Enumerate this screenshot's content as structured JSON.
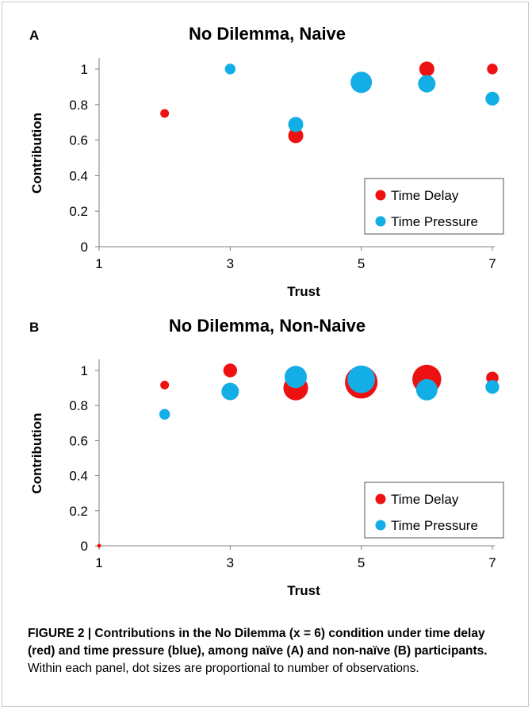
{
  "chart_data": [
    {
      "type": "scatter",
      "panel_label": "A",
      "title": "No Dilemma, Naive",
      "xlabel": "Trust",
      "ylabel": "Contribution",
      "xlim": [
        1,
        7
      ],
      "ylim": [
        0,
        1
      ],
      "xticks": [
        "1",
        "3",
        "5",
        "7"
      ],
      "yticks": [
        "0",
        "0.2",
        "0.4",
        "0.6",
        "0.8",
        "1"
      ],
      "legend_position": "bottom-right",
      "series": [
        {
          "name": "Time Delay",
          "color": "#ee1111",
          "points": [
            {
              "x": 2,
              "y": 0.75,
              "size": 1
            },
            {
              "x": 4,
              "y": 0.625,
              "size": 3
            },
            {
              "x": 6,
              "y": 1.0,
              "size": 3
            },
            {
              "x": 7,
              "y": 1.0,
              "size": 1.5
            }
          ]
        },
        {
          "name": "Time Pressure",
          "color": "#13aee5",
          "points": [
            {
              "x": 3,
              "y": 1.0,
              "size": 1.5
            },
            {
              "x": 4,
              "y": 0.688,
              "size": 3
            },
            {
              "x": 5,
              "y": 0.925,
              "size": 6
            },
            {
              "x": 6,
              "y": 0.917,
              "size": 4
            },
            {
              "x": 7,
              "y": 0.833,
              "size": 2.5
            }
          ]
        }
      ]
    },
    {
      "type": "scatter",
      "panel_label": "B",
      "title": "No Dilemma, Non-Naive",
      "xlabel": "Trust",
      "ylabel": "Contribution",
      "xlim": [
        1,
        7
      ],
      "ylim": [
        0,
        1
      ],
      "xticks": [
        "1",
        "3",
        "5",
        "7"
      ],
      "yticks": [
        "0",
        "0.2",
        "0.4",
        "0.6",
        "0.8",
        "1"
      ],
      "legend_position": "bottom-right",
      "series": [
        {
          "name": "Time Delay",
          "color": "#ee1111",
          "points": [
            {
              "x": 1,
              "y": 0.0,
              "size": 0.2
            },
            {
              "x": 2,
              "y": 0.917,
              "size": 1
            },
            {
              "x": 3,
              "y": 1.0,
              "size": 2.5
            },
            {
              "x": 4,
              "y": 0.9,
              "size": 8
            },
            {
              "x": 5,
              "y": 0.933,
              "size": 14
            },
            {
              "x": 6,
              "y": 0.95,
              "size": 11
            },
            {
              "x": 7,
              "y": 0.958,
              "size": 2
            }
          ]
        },
        {
          "name": "Time Pressure",
          "color": "#13aee5",
          "points": [
            {
              "x": 2,
              "y": 0.75,
              "size": 1.5
            },
            {
              "x": 3,
              "y": 0.88,
              "size": 4
            },
            {
              "x": 4,
              "y": 0.963,
              "size": 6.5
            },
            {
              "x": 5,
              "y": 0.95,
              "size": 10
            },
            {
              "x": 6,
              "y": 0.89,
              "size": 6
            },
            {
              "x": 7,
              "y": 0.906,
              "size": 2.5
            }
          ]
        }
      ]
    }
  ],
  "caption": {
    "bold_text": "FIGURE 2 | Contributions in the No Dilemma (x = 6) condition under time delay (red) and time pressure (blue), among naïve (A) and non-naïve (B) participants.",
    "plain_text": " Within each panel, dot sizes are proportional to number of observations."
  }
}
